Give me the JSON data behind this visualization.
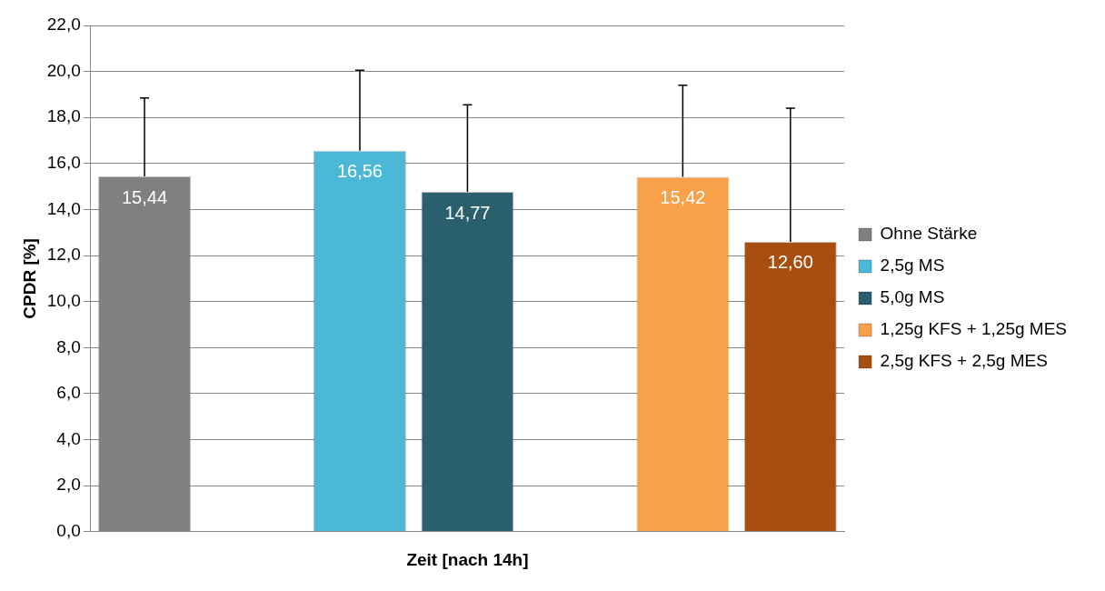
{
  "chart_data": {
    "type": "bar",
    "xlabel": "Zeit [nach 14h]",
    "ylabel": "CPDR [%]",
    "categories": [
      null,
      null,
      null,
      null,
      null,
      null,
      null
    ],
    "series": [
      {
        "name": "Ohne Stärke",
        "color": "#808080",
        "values": [
          15.44,
          null,
          null,
          null,
          null,
          null,
          null
        ],
        "errors": [
          [
            15.44,
            18.85
          ],
          null,
          null,
          null,
          null,
          null,
          null
        ],
        "value_labels": [
          "15,44",
          null,
          null,
          null,
          null,
          null,
          null
        ]
      },
      {
        "name": "2,5g MS",
        "color": "#4bb8d8",
        "values": [
          null,
          null,
          16.56,
          null,
          null,
          null,
          null
        ],
        "errors": [
          null,
          null,
          [
            16.56,
            20.05
          ],
          null,
          null,
          null,
          null
        ],
        "value_labels": [
          null,
          null,
          "16,56",
          null,
          null,
          null,
          null
        ]
      },
      {
        "name": "5,0g MS",
        "color": "#2a5f6e",
        "values": [
          null,
          null,
          null,
          14.77,
          null,
          null,
          null
        ],
        "errors": [
          null,
          null,
          null,
          [
            14.77,
            18.55
          ],
          null,
          null,
          null
        ],
        "value_labels": [
          null,
          null,
          null,
          "14,77",
          null,
          null,
          null
        ]
      },
      {
        "name": "1,25g KFS + 1,25g MES",
        "color": "#f9a04b",
        "values": [
          null,
          null,
          null,
          null,
          null,
          15.42,
          null
        ],
        "errors": [
          null,
          null,
          null,
          null,
          null,
          [
            15.42,
            19.4
          ],
          null
        ],
        "value_labels": [
          null,
          null,
          null,
          null,
          null,
          "15,42",
          null
        ]
      },
      {
        "name": "2,5g KFS + 2,5g MES",
        "color": "#a84f0f",
        "values": [
          null,
          null,
          null,
          null,
          null,
          null,
          12.6
        ],
        "errors": [
          null,
          null,
          null,
          null,
          null,
          null,
          [
            12.6,
            18.4
          ]
        ],
        "value_labels": [
          null,
          null,
          null,
          null,
          null,
          null,
          "12,60"
        ]
      }
    ],
    "ylim": [
      0,
      22
    ],
    "yticks": [
      {
        "value": 0,
        "label": "0,0"
      },
      {
        "value": 2,
        "label": "2,0"
      },
      {
        "value": 4,
        "label": "4,0"
      },
      {
        "value": 6,
        "label": "6,0"
      },
      {
        "value": 8,
        "label": "8,0"
      },
      {
        "value": 10,
        "label": "10,0"
      },
      {
        "value": 12,
        "label": "12,0"
      },
      {
        "value": 14,
        "label": "14,0"
      },
      {
        "value": 16,
        "label": "16,0"
      },
      {
        "value": 18,
        "label": "18,0"
      },
      {
        "value": 20,
        "label": "20,0"
      },
      {
        "value": 22,
        "label": "22,0"
      }
    ],
    "grid": "y",
    "legend": "right"
  }
}
